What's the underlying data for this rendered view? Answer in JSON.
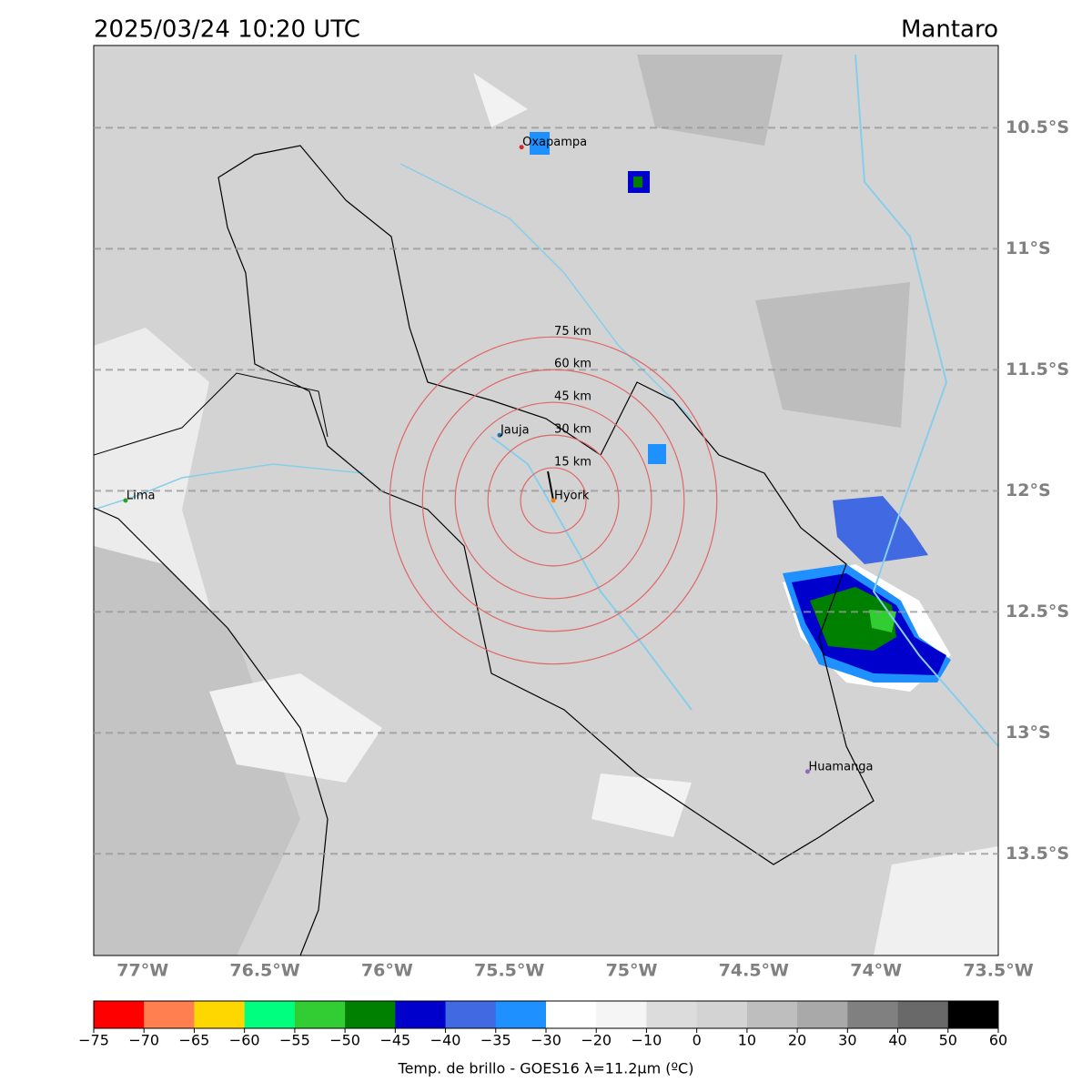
{
  "title": "2025/03/24 10:20 UTC",
  "region": "Mantaro",
  "map": {
    "xlim": [
      -77.2,
      -73.5
    ],
    "ylim": [
      -10.16,
      -13.92
    ],
    "lat_ticks": [
      {
        "value": -10.5,
        "label": "10.5°S"
      },
      {
        "value": -11,
        "label": "11°S"
      },
      {
        "value": -11.5,
        "label": "11.5°S"
      },
      {
        "value": -12,
        "label": "12°S"
      },
      {
        "value": -12.5,
        "label": "12.5°S"
      },
      {
        "value": -13,
        "label": "13°S"
      },
      {
        "value": -13.5,
        "label": "13.5°S"
      }
    ],
    "lon_ticks": [
      {
        "value": -77,
        "label": "77°W"
      },
      {
        "value": -76.5,
        "label": "76.5°W"
      },
      {
        "value": -76,
        "label": "76°W"
      },
      {
        "value": -75.5,
        "label": "75.5°W"
      },
      {
        "value": -75,
        "label": "75°W"
      },
      {
        "value": -74.5,
        "label": "74.5°W"
      },
      {
        "value": -74,
        "label": "74°W"
      },
      {
        "value": -73.5,
        "label": "73.5°W"
      }
    ],
    "places": [
      {
        "name": "Oxapampa",
        "lon": -75.45,
        "lat": -10.58,
        "color": "#d62728"
      },
      {
        "name": "Jauja",
        "lon": -75.54,
        "lat": -11.77,
        "color": "#1f77b4"
      },
      {
        "name": "Lima",
        "lon": -77.07,
        "lat": -12.04,
        "color": "#2ca02c"
      },
      {
        "name": "Hyork",
        "lon": -75.32,
        "lat": -12.04,
        "color": "#ff7f0e"
      },
      {
        "name": "Huamanga",
        "lon": -74.28,
        "lat": -13.16,
        "color": "#9467bd"
      }
    ],
    "rings": [
      {
        "value": 15,
        "label": "15 km"
      },
      {
        "value": 30,
        "label": "30 km"
      },
      {
        "value": 45,
        "label": "45 km"
      },
      {
        "value": 60,
        "label": "60 km"
      },
      {
        "value": 75,
        "label": "75 km"
      }
    ],
    "ring_color": "#e06666"
  },
  "colorbar": {
    "label": "Temp. de brillo - GOES16 λ=11.2μm (ºC)",
    "ticks": [
      {
        "value": -75,
        "label": "−75"
      },
      {
        "value": -70,
        "label": "−70"
      },
      {
        "value": -65,
        "label": "−65"
      },
      {
        "value": -60,
        "label": "−60"
      },
      {
        "value": -55,
        "label": "−55"
      },
      {
        "value": -50,
        "label": "−50"
      },
      {
        "value": -45,
        "label": "−45"
      },
      {
        "value": -40,
        "label": "−40"
      },
      {
        "value": -35,
        "label": "−35"
      },
      {
        "value": -30,
        "label": "−30"
      },
      {
        "value": -20,
        "label": "−20"
      },
      {
        "value": -10,
        "label": "−10"
      },
      0,
      10,
      20,
      30,
      40,
      50,
      60
    ],
    "colors": [
      "#ff0000",
      "#ff7f50",
      "#ffd700",
      "#00ff7f",
      "#32cd32",
      "#008000",
      "#0000cd",
      "#4169e1",
      "#1e90ff",
      "#ffffff",
      "#f5f5f5",
      "#dcdcdc",
      "#d3d3d3",
      "#bebebe",
      "#a9a9a9",
      "#808080",
      "#696969",
      "#000000"
    ]
  }
}
